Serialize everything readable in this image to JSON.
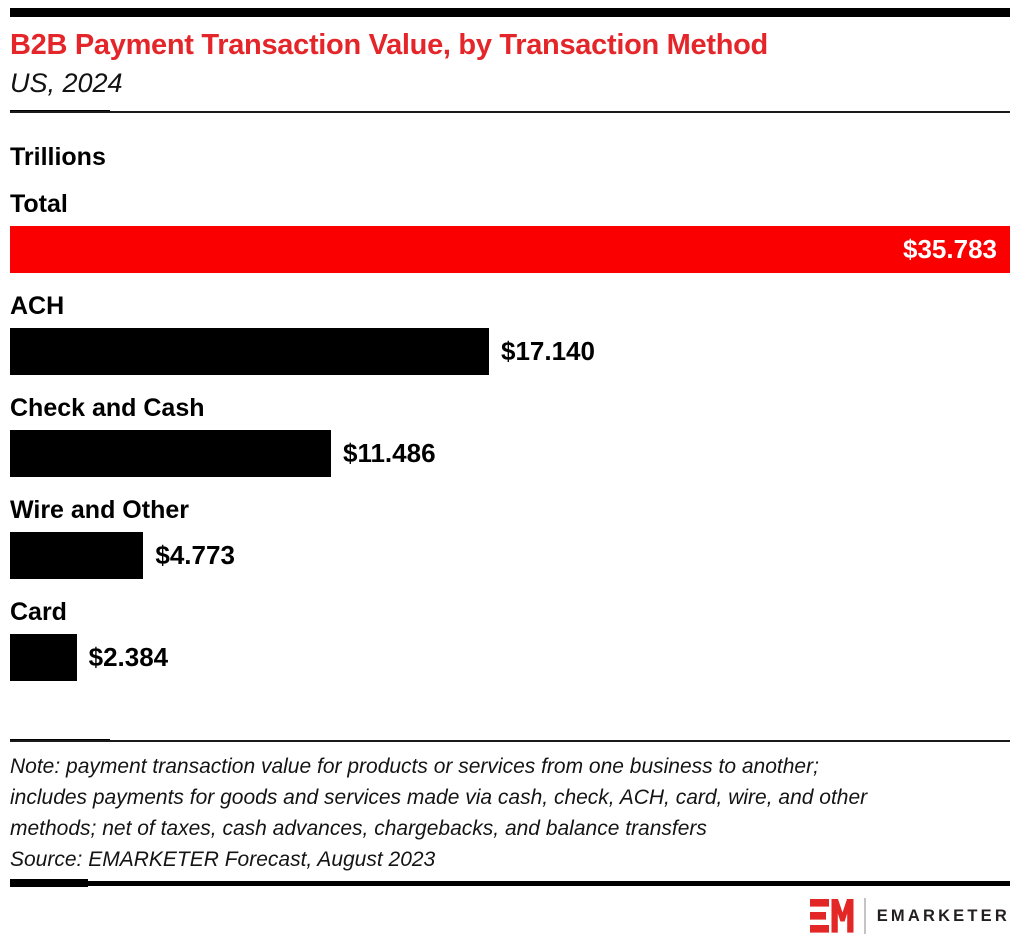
{
  "colors": {
    "accent_red": "#fb0000",
    "title_red": "#e42529",
    "bar_black": "#000000",
    "logo_red": "#e32726",
    "wordmark_dark": "#231f20"
  },
  "chart_data": {
    "type": "bar",
    "orientation": "horizontal",
    "title": "B2B Payment Transaction Value, by Transaction Method",
    "subtitle": "US, 2024",
    "units_label": "Trillions",
    "units": "USD trillions",
    "axis_max": 35.783,
    "grid": false,
    "legend": false,
    "categories": [
      "Total",
      "ACH",
      "Check and Cash",
      "Wire and Other",
      "Card"
    ],
    "values": [
      35.783,
      17.14,
      11.486,
      4.773,
      2.384
    ],
    "value_labels": [
      "$35.783",
      "$17.140",
      "$11.486",
      "$4.773",
      "$2.384"
    ],
    "bar_colors": [
      "#fb0000",
      "#000000",
      "#000000",
      "#000000",
      "#000000"
    ]
  },
  "note": {
    "lines": [
      "Note: payment transaction value for products or services from one business to another;",
      "includes payments for goods and services made via cash, check, ACH, card, wire, and other",
      "methods; net of taxes, cash advances, chargebacks, and balance transfers",
      "Source: EMARKETER Forecast, August 2023"
    ]
  },
  "footer": {
    "wordmark": "EMARKETER",
    "logo_monogram": "EM"
  }
}
